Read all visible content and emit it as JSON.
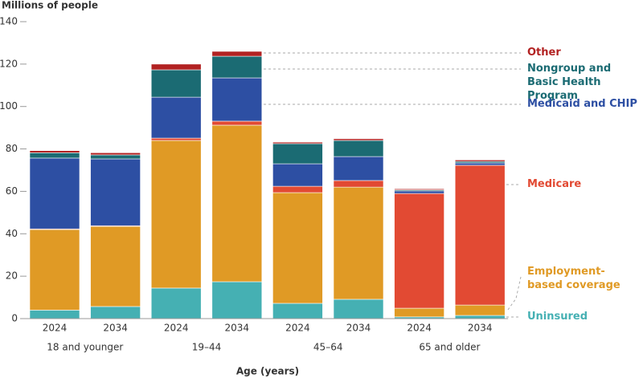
{
  "chart_data": {
    "type": "stacked-bar",
    "y_label": "Millions of people",
    "x_label": "Age (years)",
    "categories": [
      "2024",
      "2034",
      "2024",
      "2034",
      "2024",
      "2034",
      "2024",
      "2034"
    ],
    "groups": [
      "18 and younger",
      "19–44",
      "45–64",
      "65 and older"
    ],
    "ylim": [
      0,
      140
    ],
    "yticks": [
      0,
      20,
      40,
      60,
      80,
      100,
      120,
      140
    ],
    "series": [
      {
        "name": "Uninsured",
        "color": "#45b0b3",
        "values": [
          4,
          5.7,
          14.4,
          17.4,
          7.2,
          9.1,
          0.8,
          1.5
        ]
      },
      {
        "name": "Employment-based coverage",
        "color": "#e09a25",
        "values": [
          38,
          37.8,
          69.6,
          73.8,
          52.2,
          52.9,
          4.1,
          4.9
        ]
      },
      {
        "name": "Medicare",
        "color": "#e24a33",
        "values": [
          0.3,
          0.3,
          1.1,
          1.9,
          3,
          3.1,
          54.1,
          65.9
        ]
      },
      {
        "name": "Medicaid and CHIP",
        "color": "#2d4fa3",
        "values": [
          33.4,
          31.5,
          19.3,
          20.4,
          10.6,
          11.3,
          1.2,
          1.1
        ]
      },
      {
        "name": "Nongroup and Basic Health Program",
        "color": "#1b6b73",
        "values": [
          2.5,
          1.9,
          12.9,
          10.2,
          9.5,
          7.6,
          0.5,
          0.7
        ]
      },
      {
        "name": "Other",
        "color": "#b22222",
        "values": [
          1,
          1,
          2.7,
          2.3,
          0.7,
          0.8,
          0.5,
          0.7
        ]
      }
    ]
  }
}
